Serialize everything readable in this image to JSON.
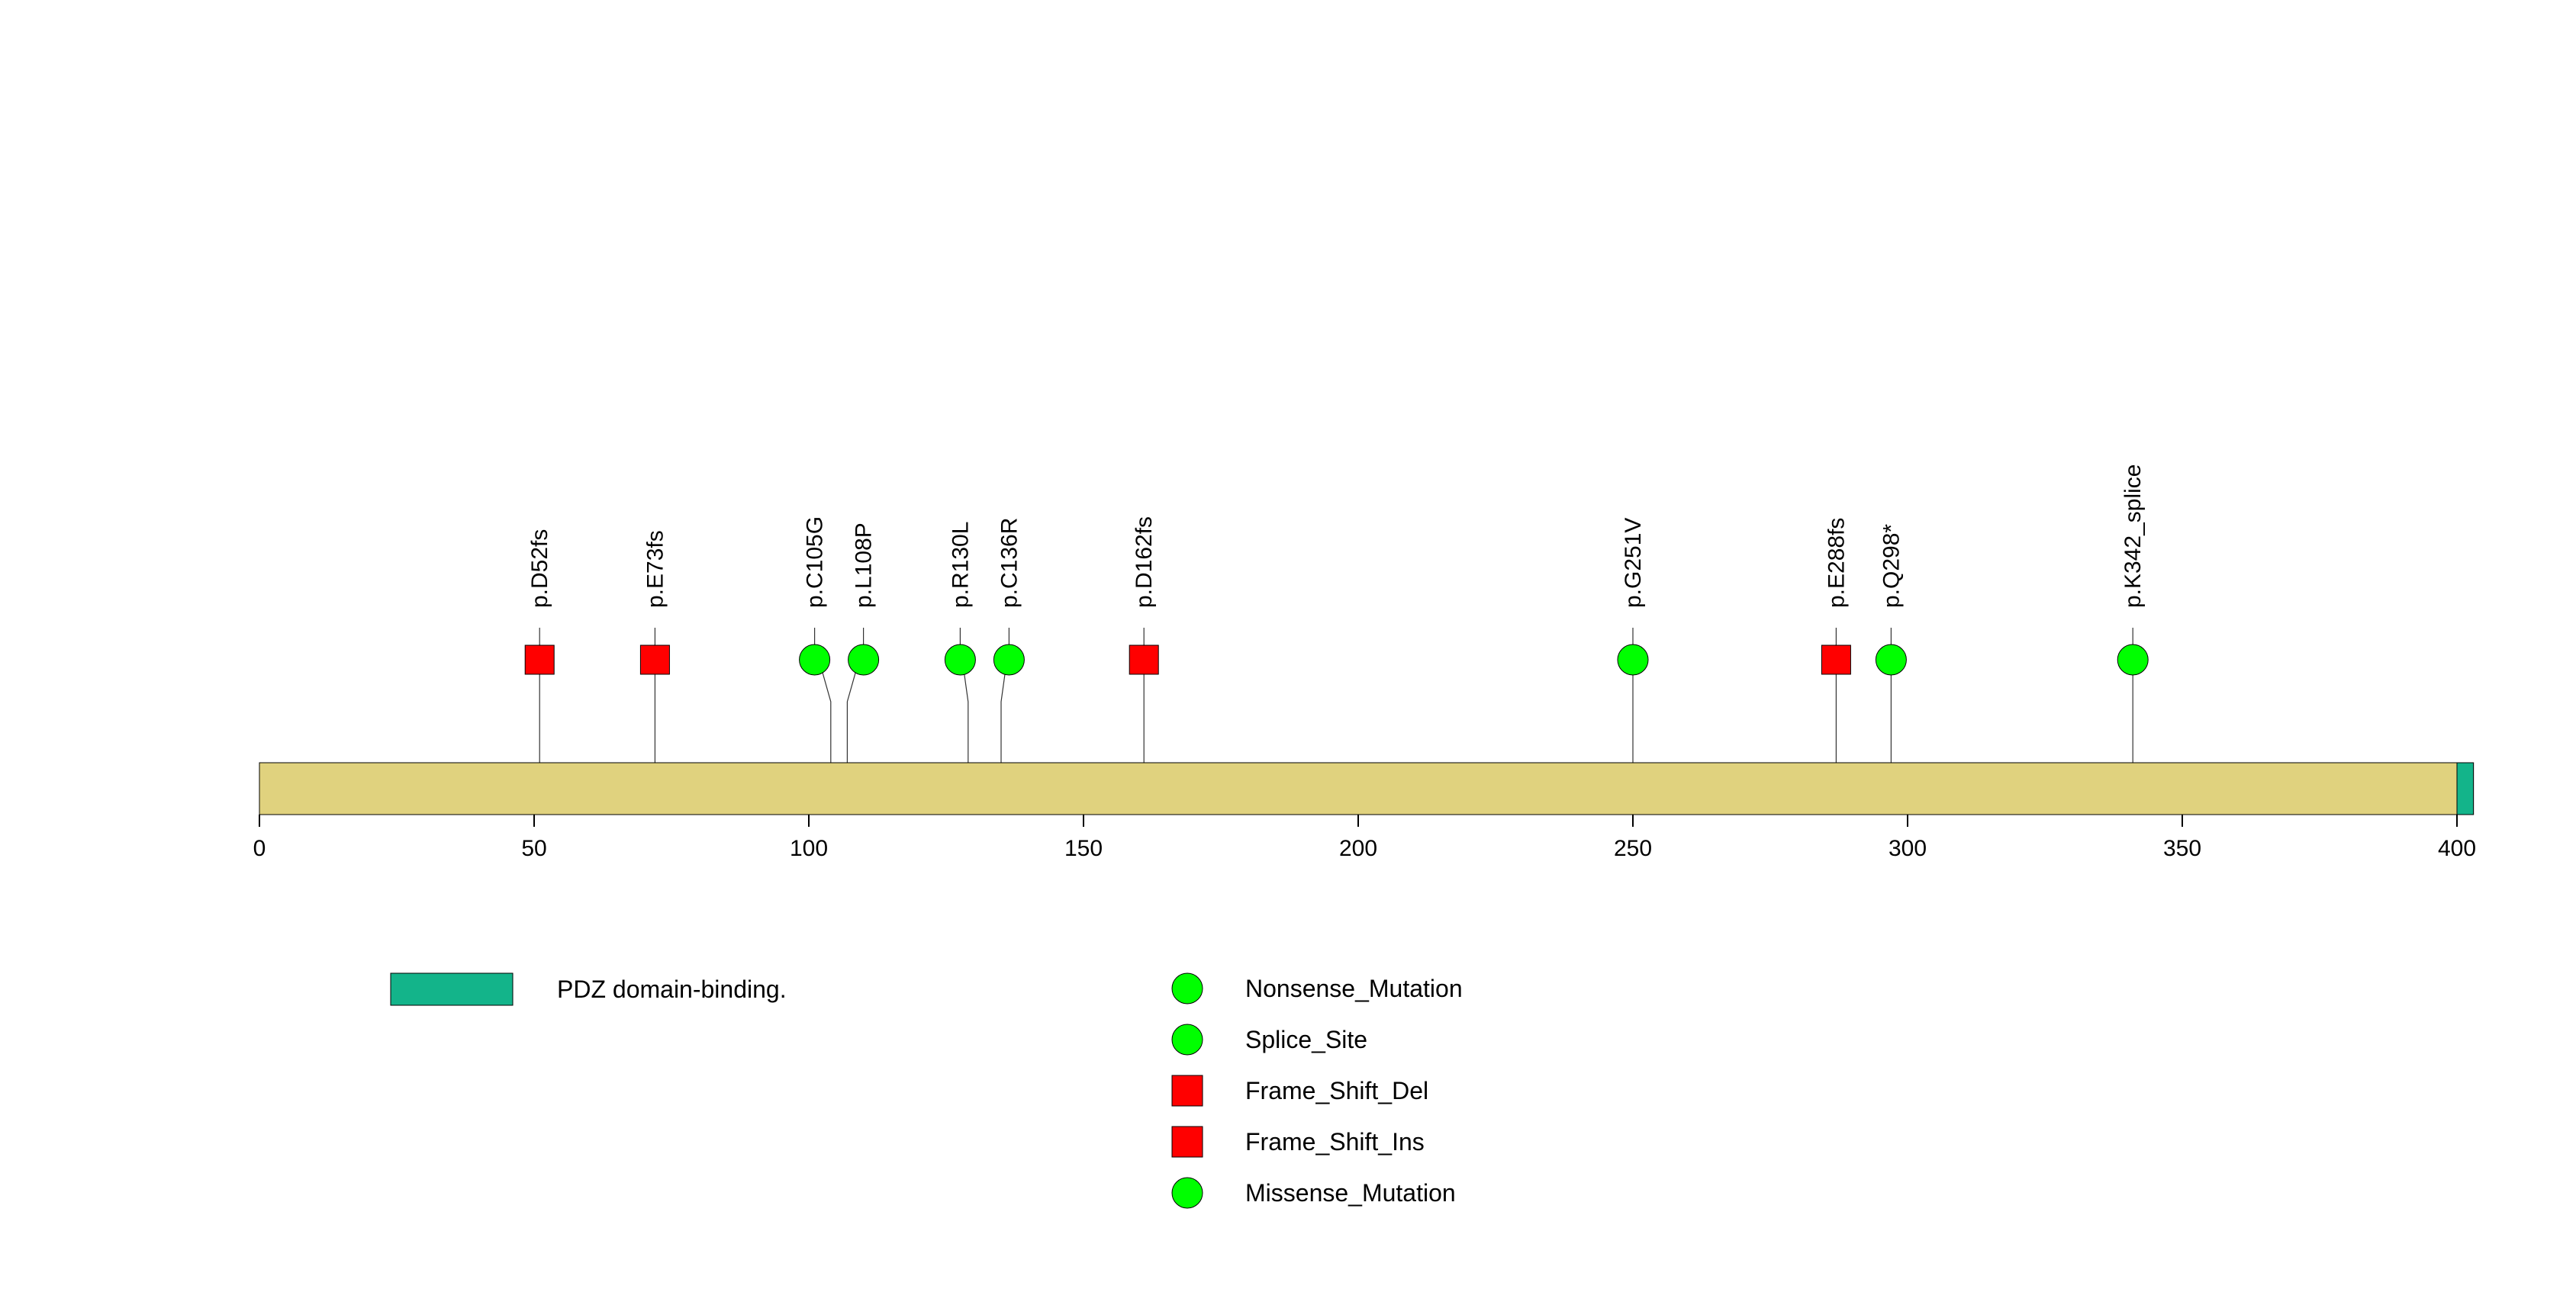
{
  "protein": {
    "length": 403,
    "backbone_color": "#E0D27E",
    "domains": [
      {
        "name": "PDZ domain-binding.",
        "start": 400,
        "end": 403,
        "color": "#13B48A"
      }
    ]
  },
  "axis": {
    "ticks": [
      0,
      50,
      100,
      150,
      200,
      250,
      300,
      350,
      400
    ],
    "tick_labels": [
      "0",
      "50",
      "100",
      "150",
      "200",
      "250",
      "300",
      "350",
      "400"
    ]
  },
  "mutations": [
    {
      "label": "p.D52fs",
      "position": 51,
      "type": "Frame_Shift_Del"
    },
    {
      "label": "p.E73fs",
      "position": 72,
      "type": "Frame_Shift_Del"
    },
    {
      "label": "p.C105G",
      "position": 104,
      "type": "Missense_Mutation"
    },
    {
      "label": "p.L108P",
      "position": 107,
      "type": "Missense_Mutation"
    },
    {
      "label": "p.R130L",
      "position": 129,
      "type": "Missense_Mutation"
    },
    {
      "label": "p.C136R",
      "position": 135,
      "type": "Missense_Mutation"
    },
    {
      "label": "p.D162fs",
      "position": 161,
      "type": "Frame_Shift_Del"
    },
    {
      "label": "p.G251V",
      "position": 250,
      "type": "Missense_Mutation"
    },
    {
      "label": "p.E288fs",
      "position": 287,
      "type": "Frame_Shift_Ins"
    },
    {
      "label": "p.Q298*",
      "position": 297,
      "type": "Nonsense_Mutation"
    },
    {
      "label": "p.K342_splice",
      "position": 341,
      "type": "Splice_Site"
    }
  ],
  "legend": {
    "domains": [
      {
        "label": "PDZ domain-binding.",
        "color": "#13B48A"
      }
    ],
    "mutation_types": [
      {
        "label": "Nonsense_Mutation",
        "shape": "circle",
        "color": "#00FF00"
      },
      {
        "label": "Splice_Site",
        "shape": "circle",
        "color": "#00FF00"
      },
      {
        "label": "Frame_Shift_Del",
        "shape": "square",
        "color": "#FF0000"
      },
      {
        "label": "Frame_Shift_Ins",
        "shape": "square",
        "color": "#FF0000"
      },
      {
        "label": "Missense_Mutation",
        "shape": "circle",
        "color": "#00FF00"
      }
    ]
  }
}
